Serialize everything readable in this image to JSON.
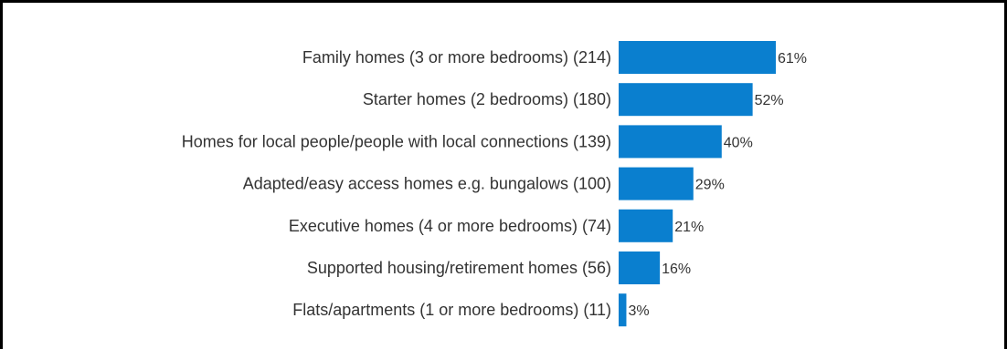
{
  "chart_data": {
    "type": "bar",
    "orientation": "horizontal",
    "categories": [
      "Family homes (3 or more bedrooms) (214)",
      "Starter homes (2 bedrooms) (180)",
      "Homes for local people/people with local connections (139)",
      "Adapted/easy access homes e.g. bungalows (100)",
      "Executive homes (4 or more bedrooms) (74)",
      "Supported housing/retirement homes (56)",
      "Flats/apartments (1 or more bedrooms) (11)"
    ],
    "values": [
      61,
      52,
      40,
      29,
      21,
      16,
      3
    ],
    "value_labels": [
      "61%",
      "52%",
      "40%",
      "29%",
      "21%",
      "16%",
      "3%"
    ],
    "bar_color": "#0A7FCF",
    "title": "",
    "xlabel": "",
    "ylabel": "",
    "xlim": [
      0,
      100
    ],
    "grid": false,
    "legend": "none"
  }
}
